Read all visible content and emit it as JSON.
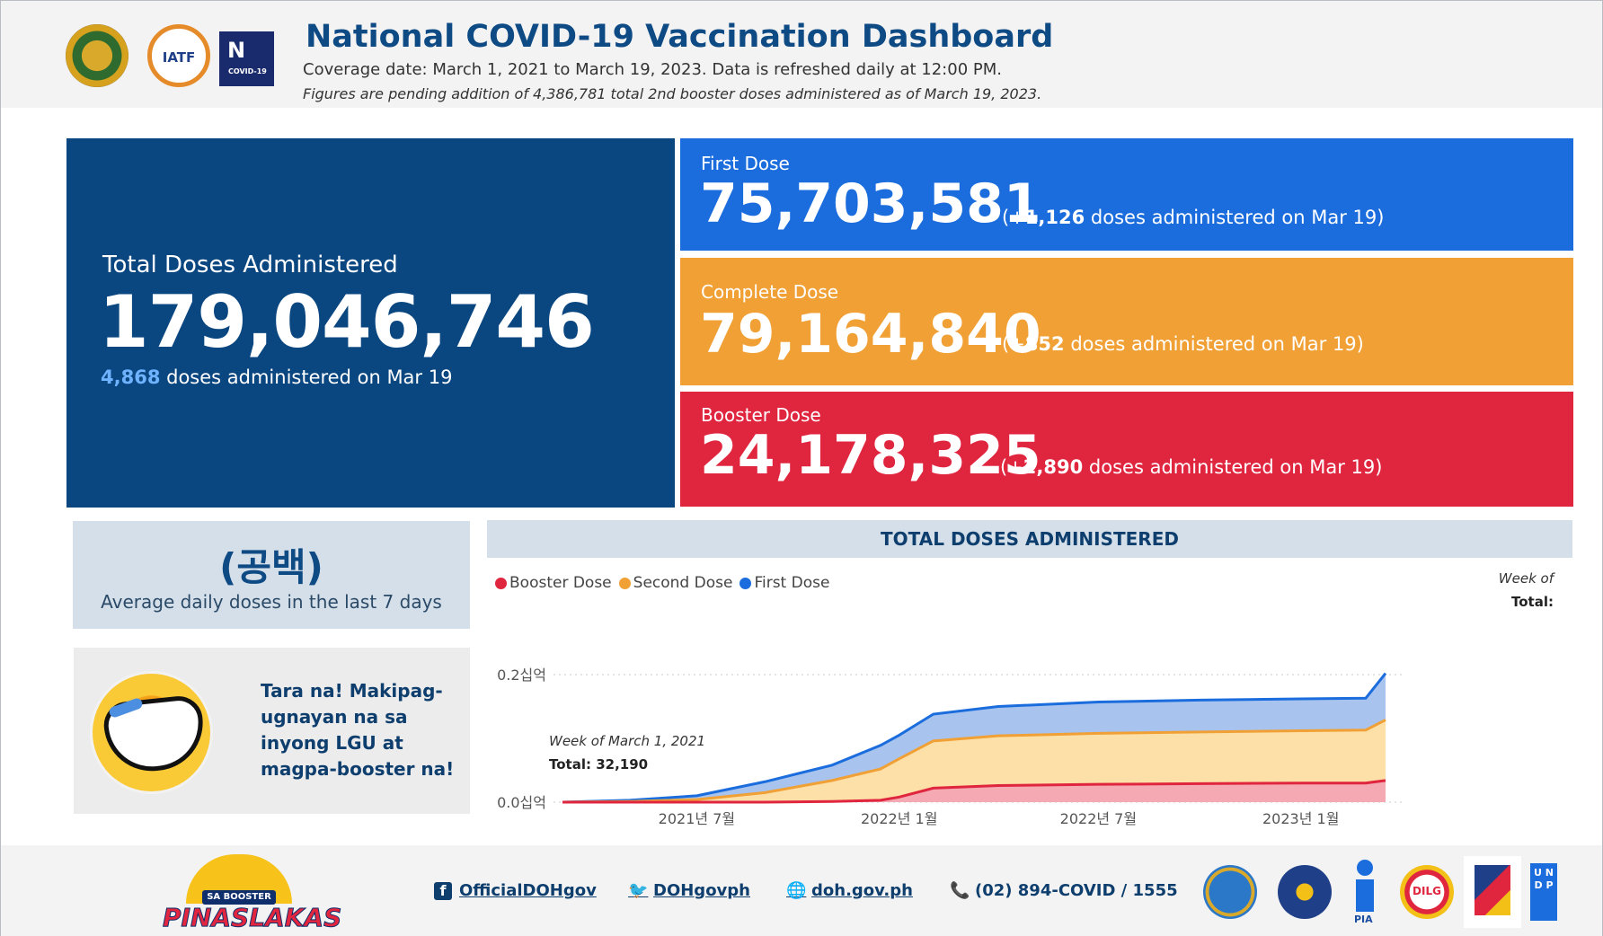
{
  "header": {
    "title": "National COVID-19 Vaccination Dashboard",
    "subtitle": "Coverage date: March 1, 2021 to March 19, 2023. Data is refreshed daily at 12:00 PM.",
    "note": "Figures are pending addition of 4,386,781 total 2nd booster doses administered as of March 19, 2023.",
    "logos": {
      "iatf": "IATF",
      "ntf": "N",
      "ntf_sub": "COVID-19"
    }
  },
  "total": {
    "label": "Total Doses Administered",
    "value": "179,046,746",
    "daily_value": "4,868",
    "daily_text": "doses administered on Mar 19"
  },
  "first_dose": {
    "label": "First Dose",
    "value": "75,703,581",
    "inc_open": "(+",
    "inc_value": "1,126",
    "inc_text": "doses administered on Mar 19)",
    "color": "#1b6ddd"
  },
  "complete_dose": {
    "label": "Complete Dose",
    "value": "79,164,840",
    "inc_open": "(+",
    "inc_value": "852",
    "inc_text": "doses administered on Mar 19)",
    "color": "#f0a035"
  },
  "booster_dose": {
    "label": "Booster Dose",
    "value": "24,178,325",
    "inc_open": "(+",
    "inc_value": "2,890",
    "inc_text": "doses administered on Mar 19)",
    "color": "#e0253f"
  },
  "average": {
    "value": "(공백)",
    "caption": "Average daily doses in the last 7 days"
  },
  "promo": {
    "text": "Tara na! Makipag-ugnayan na sa inyong LGU at magpa-booster na!"
  },
  "chart": {
    "header": "TOTAL DOSES ADMINISTERED",
    "tooltip_week": "Week of",
    "tooltip_total": "Total:",
    "annotation_week": "Week of March 1, 2021",
    "annotation_total": "Total: 32,190"
  },
  "chart_data": {
    "type": "area",
    "title": "TOTAL DOSES ADMINISTERED",
    "x_tick_labels": [
      "2021년 7월",
      "2022년 1월",
      "2022년 7월",
      "2023년 1월"
    ],
    "y_tick_labels": [
      "0.0십억",
      "0.2십억"
    ],
    "ylim": [
      0,
      0.2
    ],
    "y_unit": "billion doses (cumulative, stacked)",
    "x": [
      "2021-03-01",
      "2021-05-01",
      "2021-07-01",
      "2021-09-01",
      "2021-11-01",
      "2021-12-15",
      "2022-01-01",
      "2022-02-01",
      "2022-04-01",
      "2022-07-01",
      "2022-10-01",
      "2023-01-01",
      "2023-03-01",
      "2023-03-19"
    ],
    "series": [
      {
        "name": "Booster Dose",
        "color": "#e0253f",
        "values": [
          0,
          0,
          0,
          0,
          0.001,
          0.003,
          0.008,
          0.022,
          0.026,
          0.028,
          0.029,
          0.03,
          0.03,
          0.034
        ]
      },
      {
        "name": "Second Dose",
        "color": "#f0a035",
        "values": [
          0,
          0.001,
          0.004,
          0.015,
          0.034,
          0.052,
          0.068,
          0.096,
          0.104,
          0.108,
          0.11,
          0.112,
          0.113,
          0.129
        ]
      },
      {
        "name": "First Dose",
        "color": "#1b6ddd",
        "values": [
          0,
          0.003,
          0.01,
          0.032,
          0.058,
          0.089,
          0.105,
          0.138,
          0.15,
          0.157,
          0.16,
          0.162,
          0.163,
          0.202
        ]
      }
    ],
    "legend": "top-left",
    "grid": true
  },
  "footer": {
    "logo_tag": "SA BOOSTER",
    "logo_word": "PINASLAKAS",
    "facebook": "OfficialDOHgov",
    "twitter": "DOHgovph",
    "website": "doh.gov.ph",
    "phone": "(02) 894-COVID / 1555",
    "pia": "PIA",
    "dilg": "DILG",
    "undp": "U N D P"
  }
}
